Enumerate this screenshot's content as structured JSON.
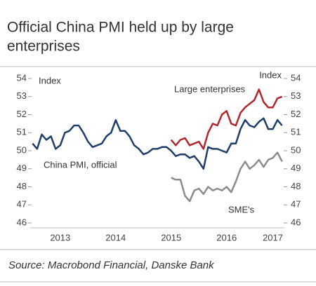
{
  "chart_data": {
    "type": "line",
    "title_lines": [
      "Official China PMI held up by large",
      "enterprises"
    ],
    "source": "Source: Macrobond Financial, Danske Bank",
    "y_label_left": "Index",
    "y_label_right": "Index",
    "categories": [
      null,
      null,
      null,
      null,
      null,
      null,
      "2013",
      null,
      null,
      null,
      null,
      null,
      null,
      null,
      null,
      null,
      null,
      null,
      "2014",
      null,
      null,
      null,
      null,
      null,
      null,
      null,
      null,
      null,
      null,
      null,
      "2015",
      null,
      null,
      null,
      null,
      null,
      null,
      null,
      null,
      null,
      null,
      null,
      "2016",
      null,
      null,
      null,
      null,
      null,
      null,
      null,
      null,
      null,
      "2017",
      null,
      null
    ],
    "series": [
      {
        "name": "China PMI, official",
        "color": "#1f3e6b",
        "values": [
          50.4,
          50.1,
          50.9,
          50.6,
          50.8,
          50.1,
          50.3,
          51.0,
          51.1,
          51.4,
          51.4,
          51.0,
          50.5,
          50.2,
          50.3,
          50.4,
          50.8,
          51.0,
          51.7,
          51.1,
          51.1,
          50.8,
          50.3,
          50.1,
          49.8,
          49.9,
          50.1,
          50.1,
          50.2,
          50.2,
          50.0,
          49.7,
          49.8,
          49.8,
          49.6,
          49.7,
          49.4,
          49.0,
          50.2,
          50.1,
          50.1,
          50.0,
          49.9,
          50.4,
          50.4,
          51.2,
          51.7,
          51.4,
          51.3,
          51.6,
          51.8,
          51.2,
          51.2,
          51.7,
          51.4
        ]
      },
      {
        "name": "Large enterprises",
        "color": "#b3262b",
        "values": [
          null,
          null,
          null,
          null,
          null,
          null,
          null,
          null,
          null,
          null,
          null,
          null,
          null,
          null,
          null,
          null,
          null,
          null,
          null,
          null,
          null,
          null,
          null,
          null,
          null,
          null,
          null,
          null,
          null,
          null,
          50.6,
          50.3,
          50.6,
          50.7,
          50.3,
          50.4,
          50.5,
          50.1,
          51.0,
          51.5,
          51.4,
          52.0,
          52.2,
          51.5,
          51.4,
          52.1,
          52.4,
          52.6,
          52.8,
          53.4,
          52.7,
          52.4,
          52.4,
          52.9,
          53.0
        ]
      },
      {
        "name": "SME's",
        "color": "#8c8c8c",
        "values": [
          null,
          null,
          null,
          null,
          null,
          null,
          null,
          null,
          null,
          null,
          null,
          null,
          null,
          null,
          null,
          null,
          null,
          null,
          null,
          null,
          null,
          null,
          null,
          null,
          null,
          null,
          null,
          null,
          null,
          null,
          48.5,
          48.4,
          48.4,
          47.5,
          47.2,
          47.8,
          47.9,
          47.6,
          48.0,
          47.8,
          47.9,
          47.8,
          48.0,
          47.7,
          48.3,
          49.0,
          49.4,
          49.0,
          49.2,
          49.5,
          49.1,
          49.5,
          49.6,
          49.9,
          49.4
        ]
      }
    ],
    "ylim": [
      46,
      54
    ],
    "yticks": [
      46,
      47,
      48,
      49,
      50,
      51,
      52,
      53,
      54
    ]
  }
}
